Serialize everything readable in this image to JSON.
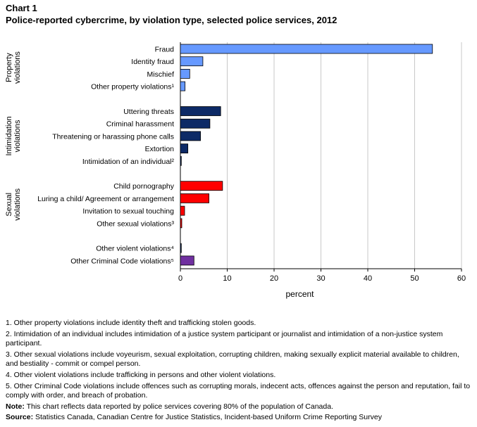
{
  "header": {
    "chart_number": "Chart 1",
    "title": "Police-reported cybercrime, by violation type, selected police services, 2012"
  },
  "chart_data": {
    "type": "bar",
    "orientation": "horizontal",
    "xlabel": "percent",
    "xlim": [
      0,
      60
    ],
    "xticks": [
      0,
      10,
      20,
      30,
      40,
      50,
      60
    ],
    "grid": true,
    "groups": [
      {
        "label": "Property violations",
        "label_lines": [
          "Property",
          "violations"
        ],
        "color": "#6699ff",
        "items": [
          {
            "category": "Fraud",
            "value": 53.8
          },
          {
            "category": "Identity fraud",
            "value": 4.8
          },
          {
            "category": "Mischief",
            "value": 2.0
          },
          {
            "category": "Other property violations¹",
            "value": 1.0
          }
        ]
      },
      {
        "label": "Intimidation violations",
        "label_lines": [
          "Intimidation",
          "violations"
        ],
        "color": "#0d2a66",
        "items": [
          {
            "category": "Uttering threats",
            "value": 8.6
          },
          {
            "category": "Criminal harassment",
            "value": 6.3
          },
          {
            "category": "Threatening or harassing phone calls",
            "value": 4.3
          },
          {
            "category": "Extortion",
            "value": 1.6
          },
          {
            "category": "Intimidation of an individual²",
            "value": 0.2
          }
        ]
      },
      {
        "label": "Sexual violations",
        "label_lines": [
          "Sexual",
          "violations"
        ],
        "color": "#ff0000",
        "items": [
          {
            "category": "Child pornography",
            "value": 9.0
          },
          {
            "category": "Luring a child/ Agreement or arrangement",
            "value": 6.1
          },
          {
            "category": "Invitation to sexual touching",
            "value": 0.9
          },
          {
            "category": "Other sexual violations³",
            "value": 0.3
          }
        ]
      },
      {
        "label": "",
        "label_lines": [],
        "color": "#0d2a66",
        "items": [
          {
            "category": "Other violent violations⁴",
            "value": 0.2,
            "color": "#0d2a66"
          },
          {
            "category": "Other Criminal Code violations⁵",
            "value": 2.9,
            "color": "#7030a0"
          }
        ]
      }
    ]
  },
  "footnotes": [
    "1. Other property violations include identity theft and trafficking stolen goods.",
    "2. Intimidation of an individual includes intimidation of a justice system participant or journalist and intimidation of a non-justice system participant.",
    "3. Other sexual violations include voyeurism, sexual exploitation, corrupting children, making sexually explicit material available to children, and bestiality - commit or compel person.",
    "4. Other violent violations include trafficking in persons and other violent violations.",
    "5. Other Criminal Code violations include offences such as corrupting morals, indecent acts, offences against the person and reputation, fail to comply with order, and breach of probation."
  ],
  "note": {
    "label": "Note:",
    "text": "This chart reflects data reported by police services covering 80% of the population of Canada."
  },
  "source": {
    "label": "Source:",
    "text": "Statistics Canada, Canadian Centre for Justice Statistics, Incident-based Uniform Crime Reporting Survey"
  }
}
